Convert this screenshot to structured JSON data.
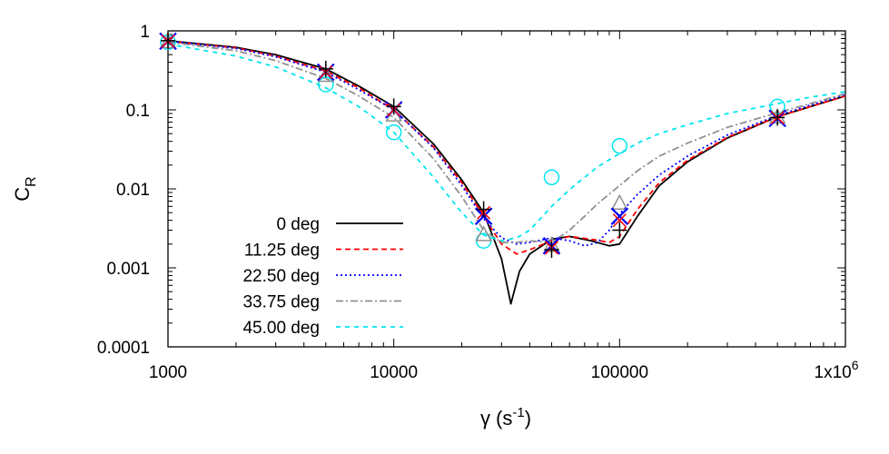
{
  "chart_data": {
    "type": "line",
    "xlabel": {
      "base": "γ (s",
      "sup": "-1",
      "tail": ")"
    },
    "ylabel": {
      "base": "C",
      "sub": "R"
    },
    "xscale": "log",
    "yscale": "log",
    "xlim": [
      1000,
      1000000
    ],
    "ylim": [
      0.0001,
      1
    ],
    "xticks": [
      {
        "value": 1000,
        "label": "1000"
      },
      {
        "value": 10000,
        "label": "10000"
      },
      {
        "value": 100000,
        "label": "100000"
      },
      {
        "value": 1000000,
        "label": "1x10",
        "sup": "6"
      }
    ],
    "yticks": [
      {
        "value": 1,
        "label": "1"
      },
      {
        "value": 0.1,
        "label": "0.1"
      },
      {
        "value": 0.01,
        "label": "0.01"
      },
      {
        "value": 0.001,
        "label": "0.001"
      },
      {
        "value": 0.0001,
        "label": "0.0001"
      }
    ],
    "grid": false,
    "legend_position": "bottom-left",
    "series": [
      {
        "name": "0 deg",
        "color": "#000000",
        "dash": "",
        "marker": "plus",
        "marker_color": "#000000",
        "x": [
          1000,
          2000,
          3000,
          5000,
          7000,
          10000,
          15000,
          20000,
          25000,
          30000,
          33000,
          36000,
          40000,
          50000,
          60000,
          75000,
          90000,
          100000,
          120000,
          150000,
          200000,
          300000,
          500000,
          700000,
          1000000
        ],
        "y": [
          0.75,
          0.62,
          0.5,
          0.33,
          0.2,
          0.11,
          0.037,
          0.013,
          0.005,
          0.0013,
          0.00035,
          0.0009,
          0.0015,
          0.0023,
          0.0025,
          0.0022,
          0.0019,
          0.002,
          0.0045,
          0.011,
          0.022,
          0.044,
          0.082,
          0.11,
          0.15
        ],
        "markers_x": [
          1000,
          5000,
          10000,
          25000,
          50000,
          100000,
          500000
        ],
        "markers_y": [
          0.75,
          0.33,
          0.11,
          0.0055,
          0.0017,
          0.003,
          0.08
        ]
      },
      {
        "name": "11.25 deg",
        "color": "#ff0000",
        "dash": "6 4",
        "marker": "cross",
        "marker_color": "#ff0000",
        "x": [
          1000,
          2000,
          3000,
          5000,
          7000,
          10000,
          15000,
          20000,
          25000,
          30000,
          35000,
          40000,
          50000,
          60000,
          75000,
          90000,
          100000,
          120000,
          150000,
          200000,
          300000,
          500000,
          700000,
          1000000
        ],
        "y": [
          0.74,
          0.61,
          0.48,
          0.31,
          0.19,
          0.1,
          0.034,
          0.012,
          0.0045,
          0.002,
          0.0015,
          0.0017,
          0.0022,
          0.0025,
          0.0023,
          0.0021,
          0.0025,
          0.0055,
          0.012,
          0.023,
          0.045,
          0.082,
          0.11,
          0.15
        ],
        "markers_x": [
          1000,
          5000,
          10000,
          25000,
          50000,
          100000,
          500000
        ],
        "markers_y": [
          0.74,
          0.3,
          0.1,
          0.005,
          0.0018,
          0.004,
          0.08
        ]
      },
      {
        "name": "22.50 deg",
        "color": "#0000ff",
        "dash": "2 3",
        "marker": "x",
        "marker_color": "#0000ff",
        "x": [
          1000,
          2000,
          3000,
          5000,
          7000,
          10000,
          15000,
          20000,
          25000,
          30000,
          35000,
          40000,
          50000,
          60000,
          70000,
          80000,
          90000,
          100000,
          120000,
          150000,
          200000,
          300000,
          500000,
          700000,
          1000000
        ],
        "y": [
          0.74,
          0.6,
          0.47,
          0.3,
          0.18,
          0.1,
          0.033,
          0.011,
          0.0042,
          0.0024,
          0.002,
          0.0021,
          0.0024,
          0.0022,
          0.0019,
          0.0021,
          0.003,
          0.0048,
          0.0085,
          0.015,
          0.026,
          0.048,
          0.085,
          0.115,
          0.155
        ],
        "markers_x": [
          1000,
          5000,
          10000,
          25000,
          50000,
          100000,
          500000
        ],
        "markers_y": [
          0.74,
          0.3,
          0.1,
          0.0045,
          0.0019,
          0.0045,
          0.078
        ]
      },
      {
        "name": "33.75 deg",
        "color": "#909090",
        "dash": "8 3 2 3",
        "marker": "triangle",
        "marker_color": "#909090",
        "x": [
          1000,
          2000,
          3000,
          5000,
          7000,
          10000,
          15000,
          20000,
          25000,
          30000,
          35000,
          40000,
          50000,
          60000,
          70000,
          80000,
          100000,
          120000,
          150000,
          200000,
          300000,
          500000,
          700000,
          1000000
        ],
        "y": [
          0.72,
          0.56,
          0.42,
          0.25,
          0.15,
          0.08,
          0.024,
          0.008,
          0.003,
          0.0021,
          0.0021,
          0.0022,
          0.0021,
          0.003,
          0.0045,
          0.0065,
          0.011,
          0.017,
          0.026,
          0.038,
          0.06,
          0.092,
          0.12,
          0.16
        ],
        "markers_x": [
          1000,
          5000,
          10000,
          25000,
          50000,
          100000,
          500000
        ],
        "markers_y": [
          0.72,
          0.27,
          0.085,
          0.0026,
          0.0019,
          0.0065,
          0.08
        ]
      },
      {
        "name": "45.00 deg",
        "color": "#00e5ee",
        "dash": "5 5",
        "marker": "circle",
        "marker_color": "#00e5ee",
        "x": [
          1000,
          2000,
          3000,
          5000,
          7000,
          10000,
          15000,
          20000,
          25000,
          30000,
          35000,
          40000,
          50000,
          60000,
          70000,
          80000,
          100000,
          120000,
          150000,
          200000,
          300000,
          500000,
          700000,
          1000000
        ],
        "y": [
          0.68,
          0.48,
          0.35,
          0.19,
          0.11,
          0.052,
          0.014,
          0.005,
          0.0026,
          0.0022,
          0.0024,
          0.003,
          0.006,
          0.0098,
          0.014,
          0.019,
          0.028,
          0.038,
          0.05,
          0.065,
          0.09,
          0.12,
          0.145,
          0.17
        ],
        "markers_x": [
          1000,
          5000,
          10000,
          25000,
          50000,
          100000,
          500000
        ],
        "markers_y": [
          0.72,
          0.21,
          0.052,
          0.0022,
          0.014,
          0.035,
          0.11
        ]
      }
    ]
  }
}
